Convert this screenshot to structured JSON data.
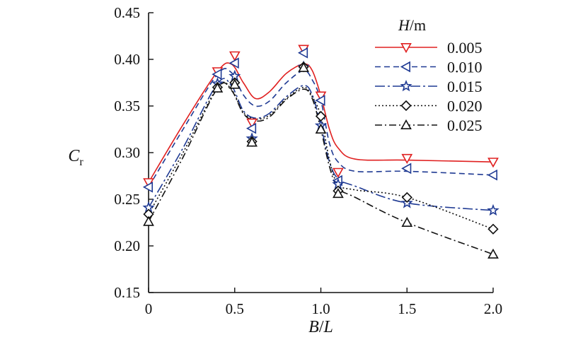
{
  "chart_data": {
    "type": "line",
    "title": "",
    "xlabel": {
      "main": "B",
      "sep": "/",
      "tail": "L"
    },
    "ylabel": {
      "main": "C",
      "sub": "r"
    },
    "xlim": [
      0,
      2.0
    ],
    "ylim": [
      0.15,
      0.45
    ],
    "x_ticks": [
      0,
      0.5,
      1.0,
      1.5,
      2.0
    ],
    "x_tick_labels": [
      "0",
      "0.5",
      "1.0",
      "1.5",
      "2.0"
    ],
    "y_ticks": [
      0.15,
      0.2,
      0.25,
      0.3,
      0.35,
      0.4,
      0.45
    ],
    "y_tick_labels": [
      "0.15",
      "0.20",
      "0.25",
      "0.30",
      "0.35",
      "0.40",
      "0.45"
    ],
    "grid": false,
    "legend": {
      "title_main": "H",
      "title_unit": "/m",
      "placement": "top-right"
    },
    "x": [
      0,
      0.4,
      0.5,
      0.6,
      0.9,
      1.0,
      1.1,
      1.5,
      2.0
    ],
    "series": [
      {
        "name": "0.005",
        "color": "#e02020",
        "dash": "",
        "marker": "triangle-down",
        "values": [
          0.268,
          0.387,
          0.404,
          0.332,
          0.411,
          0.361,
          0.279,
          0.294,
          0.29
        ],
        "curve": [
          [
            0,
            0.268
          ],
          [
            0.2,
            0.33
          ],
          [
            0.4,
            0.387
          ],
          [
            0.48,
            0.395
          ],
          [
            0.55,
            0.375
          ],
          [
            0.62,
            0.358
          ],
          [
            0.7,
            0.365
          ],
          [
            0.8,
            0.385
          ],
          [
            0.9,
            0.395
          ],
          [
            0.95,
            0.388
          ],
          [
            1.0,
            0.361
          ],
          [
            1.05,
            0.325
          ],
          [
            1.1,
            0.305
          ],
          [
            1.2,
            0.293
          ],
          [
            1.5,
            0.292
          ],
          [
            2.0,
            0.29
          ]
        ]
      },
      {
        "name": "0.010",
        "color": "#1f3a93",
        "dash": "8,5",
        "marker": "triangle-left",
        "values": [
          0.263,
          0.384,
          0.396,
          0.326,
          0.407,
          0.356,
          0.27,
          0.283,
          0.276
        ],
        "curve": [
          [
            0,
            0.263
          ],
          [
            0.2,
            0.325
          ],
          [
            0.4,
            0.384
          ],
          [
            0.48,
            0.386
          ],
          [
            0.55,
            0.362
          ],
          [
            0.62,
            0.35
          ],
          [
            0.7,
            0.355
          ],
          [
            0.8,
            0.375
          ],
          [
            0.9,
            0.388
          ],
          [
            0.95,
            0.378
          ],
          [
            1.0,
            0.356
          ],
          [
            1.05,
            0.31
          ],
          [
            1.1,
            0.29
          ],
          [
            1.2,
            0.28
          ],
          [
            1.5,
            0.28
          ],
          [
            2.0,
            0.276
          ]
        ]
      },
      {
        "name": "0.015",
        "color": "#1f3a93",
        "dash": "14,4,3,4",
        "marker": "star",
        "values": [
          0.241,
          0.374,
          0.382,
          0.315,
          0.392,
          0.329,
          0.266,
          0.246,
          0.238
        ],
        "curve": [
          [
            0,
            0.241
          ],
          [
            0.2,
            0.305
          ],
          [
            0.4,
            0.374
          ],
          [
            0.48,
            0.372
          ],
          [
            0.55,
            0.345
          ],
          [
            0.62,
            0.337
          ],
          [
            0.7,
            0.342
          ],
          [
            0.8,
            0.36
          ],
          [
            0.9,
            0.372
          ],
          [
            0.95,
            0.362
          ],
          [
            1.0,
            0.329
          ],
          [
            1.05,
            0.29
          ],
          [
            1.1,
            0.272
          ],
          [
            1.2,
            0.264
          ],
          [
            1.5,
            0.246
          ],
          [
            2.0,
            0.238
          ]
        ]
      },
      {
        "name": "0.020",
        "color": "#111111",
        "dash": "2,3",
        "marker": "diamond",
        "values": [
          0.234,
          0.37,
          0.375,
          0.312,
          0.392,
          0.339,
          0.259,
          0.252,
          0.218
        ],
        "curve": [
          [
            0,
            0.234
          ],
          [
            0.2,
            0.3
          ],
          [
            0.4,
            0.37
          ],
          [
            0.48,
            0.368
          ],
          [
            0.55,
            0.343
          ],
          [
            0.62,
            0.336
          ],
          [
            0.7,
            0.34
          ],
          [
            0.8,
            0.358
          ],
          [
            0.9,
            0.37
          ],
          [
            0.95,
            0.36
          ],
          [
            1.0,
            0.339
          ],
          [
            1.05,
            0.292
          ],
          [
            1.1,
            0.266
          ],
          [
            1.2,
            0.26
          ],
          [
            1.5,
            0.252
          ],
          [
            2.0,
            0.218
          ]
        ]
      },
      {
        "name": "0.025",
        "color": "#111111",
        "dash": "10,4,2,4",
        "marker": "triangle-up",
        "values": [
          0.226,
          0.369,
          0.373,
          0.311,
          0.391,
          0.325,
          0.256,
          0.225,
          0.191
        ],
        "curve": [
          [
            0,
            0.226
          ],
          [
            0.2,
            0.295
          ],
          [
            0.4,
            0.369
          ],
          [
            0.48,
            0.367
          ],
          [
            0.55,
            0.342
          ],
          [
            0.62,
            0.334
          ],
          [
            0.7,
            0.338
          ],
          [
            0.8,
            0.357
          ],
          [
            0.9,
            0.368
          ],
          [
            0.95,
            0.358
          ],
          [
            1.0,
            0.325
          ],
          [
            1.05,
            0.285
          ],
          [
            1.1,
            0.262
          ],
          [
            1.2,
            0.252
          ],
          [
            1.5,
            0.225
          ],
          [
            2.0,
            0.191
          ]
        ]
      }
    ]
  }
}
